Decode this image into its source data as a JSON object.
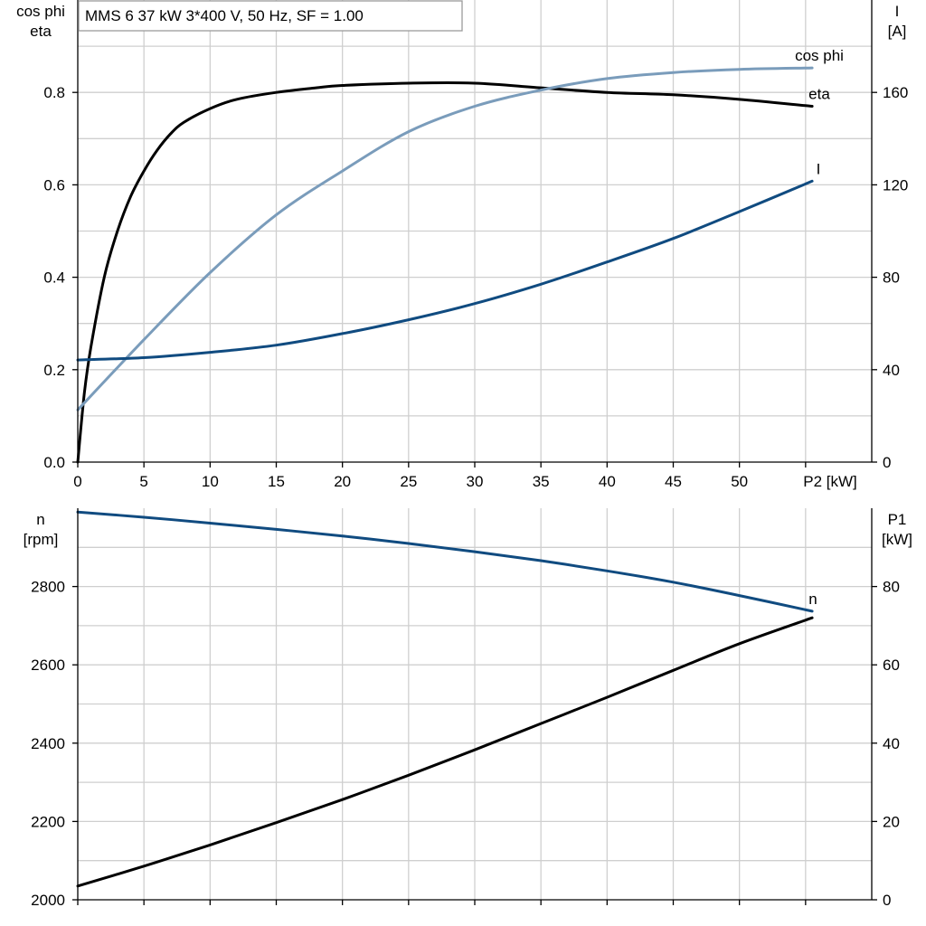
{
  "colors": {
    "eta": "#000000",
    "cos_phi": "#7a9cbb",
    "current": "#104b80",
    "speed": "#104b80",
    "p1": "#000000",
    "grid": "#cfcfcf"
  },
  "chart_data": [
    {
      "type": "line",
      "title": "MMS 6   37 kW   3*400 V, 50 Hz, SF = 1.00",
      "xlabel": "P2 [kW]",
      "ylabel_left": [
        "cos phi",
        "eta"
      ],
      "ylabel_right": [
        "I",
        "[A]"
      ],
      "xlim": [
        0,
        60
      ],
      "ylim_left": [
        0,
        1.0
      ],
      "ylim_right": [
        0,
        200
      ],
      "x_ticks": [
        "0",
        "5",
        "10",
        "15",
        "20",
        "25",
        "30",
        "35",
        "40",
        "45",
        "50"
      ],
      "y_ticks_left": [
        "0.0",
        "0.2",
        "0.4",
        "0.6",
        "0.8"
      ],
      "y_ticks_right": [
        "0",
        "40",
        "80",
        "120",
        "160"
      ],
      "grid": true,
      "series": [
        {
          "name": "eta",
          "axis": "left",
          "color": "black",
          "x": [
            0,
            0.5,
            1,
            2,
            3,
            4,
            5,
            6,
            7,
            8,
            10,
            12,
            15,
            18,
            20,
            25,
            30,
            35,
            40,
            45,
            50,
            55.5
          ],
          "y": [
            0,
            0.15,
            0.25,
            0.4,
            0.5,
            0.575,
            0.63,
            0.675,
            0.71,
            0.735,
            0.765,
            0.785,
            0.8,
            0.81,
            0.815,
            0.82,
            0.82,
            0.81,
            0.8,
            0.795,
            0.785,
            0.77
          ]
        },
        {
          "name": "cos phi",
          "axis": "left",
          "color": "lightblue",
          "x": [
            0,
            5,
            10,
            15,
            20,
            25,
            30,
            35,
            40,
            45,
            50,
            55.5
          ],
          "y": [
            0.113,
            0.265,
            0.41,
            0.535,
            0.63,
            0.715,
            0.77,
            0.805,
            0.83,
            0.843,
            0.85,
            0.853
          ]
        },
        {
          "name": "I",
          "axis": "right",
          "color": "blue",
          "x": [
            0,
            5,
            10,
            15,
            20,
            25,
            30,
            35,
            40,
            45,
            50,
            55.5
          ],
          "y": [
            44.2,
            45.2,
            47.5,
            50.6,
            55.6,
            61.6,
            68.6,
            77.0,
            86.6,
            96.8,
            108.4,
            121.6
          ]
        }
      ]
    },
    {
      "type": "line",
      "xlim": [
        0,
        60
      ],
      "ylabel_left": [
        "n",
        "[rpm]"
      ],
      "ylabel_right": [
        "P1",
        "[kW]"
      ],
      "ylim_left": [
        2000,
        3000
      ],
      "ylim_right": [
        0,
        100
      ],
      "y_ticks_left": [
        "2000",
        "2200",
        "2400",
        "2600",
        "2800"
      ],
      "y_ticks_right": [
        "0",
        "20",
        "40",
        "60",
        "80"
      ],
      "grid": true,
      "series": [
        {
          "name": "n",
          "axis": "left",
          "color": "blue",
          "x": [
            0,
            5,
            10,
            15,
            20,
            25,
            30,
            35,
            40,
            45,
            50,
            55.5
          ],
          "y": [
            2990,
            2977,
            2962,
            2946,
            2929,
            2910,
            2889,
            2866,
            2840,
            2811,
            2777,
            2737
          ]
        },
        {
          "axis": "right",
          "color": "black",
          "x": [
            0,
            5,
            10,
            15,
            20,
            25,
            30,
            35,
            40,
            45,
            50,
            55.5
          ],
          "y": [
            3.5,
            8.6,
            14.0,
            19.7,
            25.6,
            31.8,
            38.3,
            45.0,
            51.7,
            58.6,
            65.4,
            72.0
          ]
        }
      ]
    }
  ]
}
